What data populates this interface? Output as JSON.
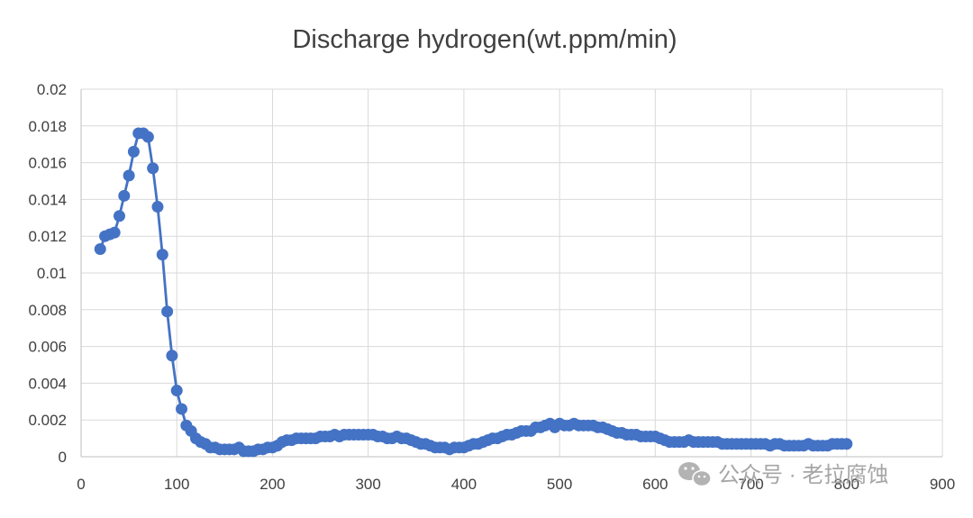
{
  "chart_data": {
    "type": "line",
    "title": "Discharge hydrogen(wt.ppm/min)",
    "xlabel": "",
    "ylabel": "",
    "xlim": [
      0,
      900
    ],
    "ylim": [
      0,
      0.02
    ],
    "x_ticks": [
      "0",
      "100",
      "200",
      "300",
      "400",
      "500",
      "600",
      "700",
      "800",
      "900"
    ],
    "y_ticks": [
      "0",
      "0.002",
      "0.004",
      "0.006",
      "0.008",
      "0.01",
      "0.012",
      "0.014",
      "0.016",
      "0.018",
      "0.02"
    ],
    "grid": true,
    "legend": "none",
    "markers": true,
    "series_color": "#4472c4",
    "series": [
      {
        "x": [
          20,
          25,
          30,
          35,
          40,
          45,
          50,
          55,
          60,
          65,
          70,
          75,
          80,
          85,
          90,
          95,
          100,
          105,
          110,
          115,
          120,
          125,
          130,
          135,
          140,
          145,
          150,
          155,
          160,
          165,
          170,
          175,
          180,
          185,
          190,
          195,
          200,
          205,
          210,
          215,
          220,
          225,
          230,
          235,
          240,
          245,
          250,
          255,
          260,
          265,
          270,
          275,
          280,
          285,
          290,
          295,
          300,
          305,
          310,
          315,
          320,
          325,
          330,
          335,
          340,
          345,
          350,
          355,
          360,
          365,
          370,
          375,
          380,
          385,
          390,
          395,
          400,
          405,
          410,
          415,
          420,
          425,
          430,
          435,
          440,
          445,
          450,
          455,
          460,
          465,
          470,
          475,
          480,
          485,
          490,
          495,
          500,
          505,
          510,
          515,
          520,
          525,
          530,
          535,
          540,
          545,
          550,
          555,
          560,
          565,
          570,
          575,
          580,
          585,
          590,
          595,
          600,
          605,
          610,
          615,
          620,
          625,
          630,
          635,
          640,
          645,
          650,
          655,
          660,
          665,
          670,
          675,
          680,
          685,
          690,
          695,
          700,
          705,
          710,
          715,
          720,
          725,
          730,
          735,
          740,
          745,
          750,
          755,
          760,
          765,
          770,
          775,
          780,
          785,
          790,
          795,
          800
        ],
        "values": [
          0.0113,
          0.012,
          0.0121,
          0.0122,
          0.0131,
          0.0142,
          0.0153,
          0.0166,
          0.0176,
          0.0176,
          0.0174,
          0.0157,
          0.0136,
          0.011,
          0.0079,
          0.0055,
          0.0036,
          0.0026,
          0.0017,
          0.0014,
          0.001,
          0.0008,
          0.0007,
          0.0005,
          0.0005,
          0.0004,
          0.0004,
          0.0004,
          0.0004,
          0.0005,
          0.0003,
          0.0003,
          0.0003,
          0.0004,
          0.0004,
          0.0005,
          0.0005,
          0.0006,
          0.0008,
          0.0009,
          0.0009,
          0.001,
          0.001,
          0.001,
          0.001,
          0.001,
          0.0011,
          0.0011,
          0.0011,
          0.0012,
          0.0011,
          0.0012,
          0.0012,
          0.0012,
          0.0012,
          0.0012,
          0.0012,
          0.0012,
          0.0011,
          0.0011,
          0.001,
          0.001,
          0.0011,
          0.001,
          0.001,
          0.0009,
          0.0008,
          0.0007,
          0.0007,
          0.0006,
          0.0005,
          0.0005,
          0.0005,
          0.0004,
          0.0005,
          0.0005,
          0.0005,
          0.0006,
          0.0007,
          0.0007,
          0.0008,
          0.0009,
          0.001,
          0.001,
          0.0011,
          0.0012,
          0.0012,
          0.0013,
          0.0014,
          0.0014,
          0.0014,
          0.0016,
          0.0016,
          0.0017,
          0.0018,
          0.0016,
          0.0018,
          0.0017,
          0.0017,
          0.0018,
          0.0017,
          0.0017,
          0.0017,
          0.0017,
          0.0016,
          0.0016,
          0.0015,
          0.0014,
          0.0013,
          0.0013,
          0.0012,
          0.0012,
          0.0012,
          0.0011,
          0.0011,
          0.0011,
          0.0011,
          0.001,
          0.0009,
          0.0008,
          0.0008,
          0.0008,
          0.0008,
          0.0009,
          0.0008,
          0.0008,
          0.0008,
          0.0008,
          0.0008,
          0.0008,
          0.0007,
          0.0007,
          0.0007,
          0.0007,
          0.0007,
          0.0007,
          0.0007,
          0.0007,
          0.0007,
          0.0007,
          0.0006,
          0.0007,
          0.0007,
          0.0006,
          0.0006,
          0.0006,
          0.0006,
          0.0006,
          0.0007,
          0.0006,
          0.0006,
          0.0006,
          0.0006,
          0.0007,
          0.0007,
          0.0007,
          0.0007
        ]
      }
    ]
  },
  "watermark": {
    "text": "公众号 · 老拉腐蚀",
    "icon": "wechat-icon"
  }
}
